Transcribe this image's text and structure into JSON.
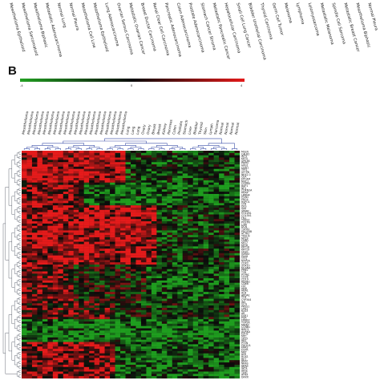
{
  "figure": {
    "panel_letter": "B",
    "colors": {
      "low": "#1f9e1f",
      "mid": "#0b0b0b",
      "high": "#e51b1b",
      "dendrogram": "#3b4fa8"
    }
  },
  "chart_data": {
    "type": "heatmap",
    "colorbar": {
      "min_label": "-4",
      "mid_label": "0",
      "max_label": "4",
      "colors": [
        "#22a022",
        "#0a0a0a",
        "#e41a1a"
      ]
    },
    "top_labels": [
      "Mesothelioma Epithelioid",
      "Mesothelioma Sarcomatoid",
      "Mesothelioma Biphasic",
      "Metastatic Adenocarcinoma",
      "Normal Lung",
      "Normal Pleura",
      "Mesothelioma Cell Line",
      "Mesothelioma Epithelioid",
      "Lung Adenocarcinoma",
      "Ovarian Serous Carcinoma",
      "Metastatic Ovarian Cancer",
      "Breast Ductal Carcinoma",
      "Renal Clear Cell Carcinoma",
      "Pancreatic Adenocarcinoma",
      "Colon Adenocarcinoma",
      "Prostate Adenocarcinoma",
      "Stomach Cancer Stroma",
      "Metastatic Pancreatic Cancer",
      "Hepatocellular Carcinoma",
      "Small Cell Lung Cancer",
      "Bladder Urothelial Carcinoma",
      "Thyroid Carcinoma",
      "Germ Cell Tumor",
      "Melanoma",
      "Lymphoma",
      "Leiomyosarcoma",
      "Metastatic Melanoma",
      "Spindle Cell Sarcoma",
      "Metastatic Breast Cancer",
      "Mesothelioma Biphasic",
      "Normal Pleura"
    ],
    "column_labels": [
      "Mesothelioma",
      "Mesothelioma",
      "Mesothelioma",
      "Mesothelioma",
      "Mesothelioma",
      "Mesothelioma",
      "Mesothelioma",
      "Mesothelioma",
      "Mesothelioma",
      "Mesothelioma",
      "Mesothelioma",
      "Mesothelioma",
      "Mesothelioma",
      "Mesothelioma",
      "Mesothelioma",
      "Mesothelioma",
      "Mesothelioma",
      "Mesothelioma",
      "Mesothelioma",
      "Mesothelioma",
      "Lung",
      "Lung",
      "Lung",
      "Ovary",
      "Ovary",
      "Breast",
      "Breast",
      "Kidney",
      "Pancreas",
      "Colon",
      "Prostate",
      "Stomach",
      "Liver",
      "Bladder",
      "Thyroid",
      "Skin",
      "Lymph",
      "Sarcoma",
      "Normal",
      "Normal",
      "Normal",
      "Normal"
    ],
    "row_labels": [
      "MSLN",
      "CALB2",
      "WT1",
      "KRT5",
      "UPK3B",
      "PDPN",
      "HAS1",
      "CDH1",
      "TFF1",
      "SFTPB",
      "NKX2-1",
      "CEA",
      "EPCAM",
      "MUC1",
      "CLDN4",
      "BAP1",
      "NF2",
      "CDKN2A",
      "MTAP",
      "LRRN4",
      "ITLN1",
      "PRG4",
      "RSPO1",
      "CFB",
      "DES",
      "VIM",
      "SPARC",
      "COL1A1",
      "COL3A1",
      "FN1",
      "THBS2",
      "POSTN",
      "LUM",
      "DCN",
      "TGFB1",
      "PDGFRB",
      "ACTA2",
      "TAGLN",
      "MYL9",
      "CNN1",
      "KRT7",
      "KRT8",
      "KRT18",
      "KRT19",
      "CK20",
      "GATA3",
      "PAX8",
      "TTF1",
      "NAPSA",
      "CDX2",
      "SOX10",
      "MLANA",
      "PMEL",
      "TYR",
      "PTPRC",
      "CD3E",
      "CD19",
      "MS4A1",
      "CD68",
      "LYZ",
      "HBB",
      "HBA1",
      "ALB",
      "APOA1",
      "TTR",
      "CYP3A4",
      "INS",
      "GCG",
      "PRSS1",
      "CPA1",
      "KLK3",
      "AR",
      "ESR1",
      "PGR",
      "ERBB2",
      "TOP2A",
      "MKI67",
      "CCNB1",
      "BIRC5",
      "AURKA",
      "EZH2",
      "MYC",
      "TP53",
      "RB1",
      "PTEN",
      "PIK3CA",
      "KRAS",
      "EGFR",
      "MET",
      "ALK",
      "ROS1",
      "RET",
      "BRAF",
      "NRAS",
      "HRAS",
      "IDH1",
      "IDH2",
      "TERT",
      "ATRX",
      "DAXX"
    ],
    "n_rows": 100,
    "n_cols": 42,
    "values_note": "",
    "blocks": [
      {
        "rows": [
          0,
          14
        ],
        "cols": [
          0,
          20
        ],
        "level": 2.8
      },
      {
        "rows": [
          0,
          14
        ],
        "cols": [
          20,
          42
        ],
        "level": -1.2
      },
      {
        "rows": [
          14,
          24
        ],
        "cols": [
          0,
          12
        ],
        "level": 1.6
      },
      {
        "rows": [
          14,
          24
        ],
        "cols": [
          12,
          42
        ],
        "level": -2.0
      },
      {
        "rows": [
          24,
          50
        ],
        "cols": [
          0,
          26
        ],
        "level": 2.6
      },
      {
        "rows": [
          24,
          50
        ],
        "cols": [
          26,
          42
        ],
        "level": -1.0
      },
      {
        "rows": [
          50,
          66
        ],
        "cols": [
          0,
          10
        ],
        "level": 1.4
      },
      {
        "rows": [
          50,
          66
        ],
        "cols": [
          10,
          24
        ],
        "level": -0.2
      },
      {
        "rows": [
          50,
          66
        ],
        "cols": [
          24,
          42
        ],
        "level": -1.6
      },
      {
        "rows": [
          66,
          74
        ],
        "cols": [
          0,
          18
        ],
        "level": 1.0
      },
      {
        "rows": [
          66,
          74
        ],
        "cols": [
          18,
          42
        ],
        "level": -0.6
      },
      {
        "rows": [
          74,
          84
        ],
        "cols": [
          0,
          6
        ],
        "level": -1.8
      },
      {
        "rows": [
          74,
          84
        ],
        "cols": [
          6,
          42
        ],
        "level": -2.6
      },
      {
        "rows": [
          84,
          100
        ],
        "cols": [
          0,
          18
        ],
        "level": 1.8
      },
      {
        "rows": [
          84,
          100
        ],
        "cols": [
          18,
          42
        ],
        "level": -1.8
      }
    ]
  }
}
